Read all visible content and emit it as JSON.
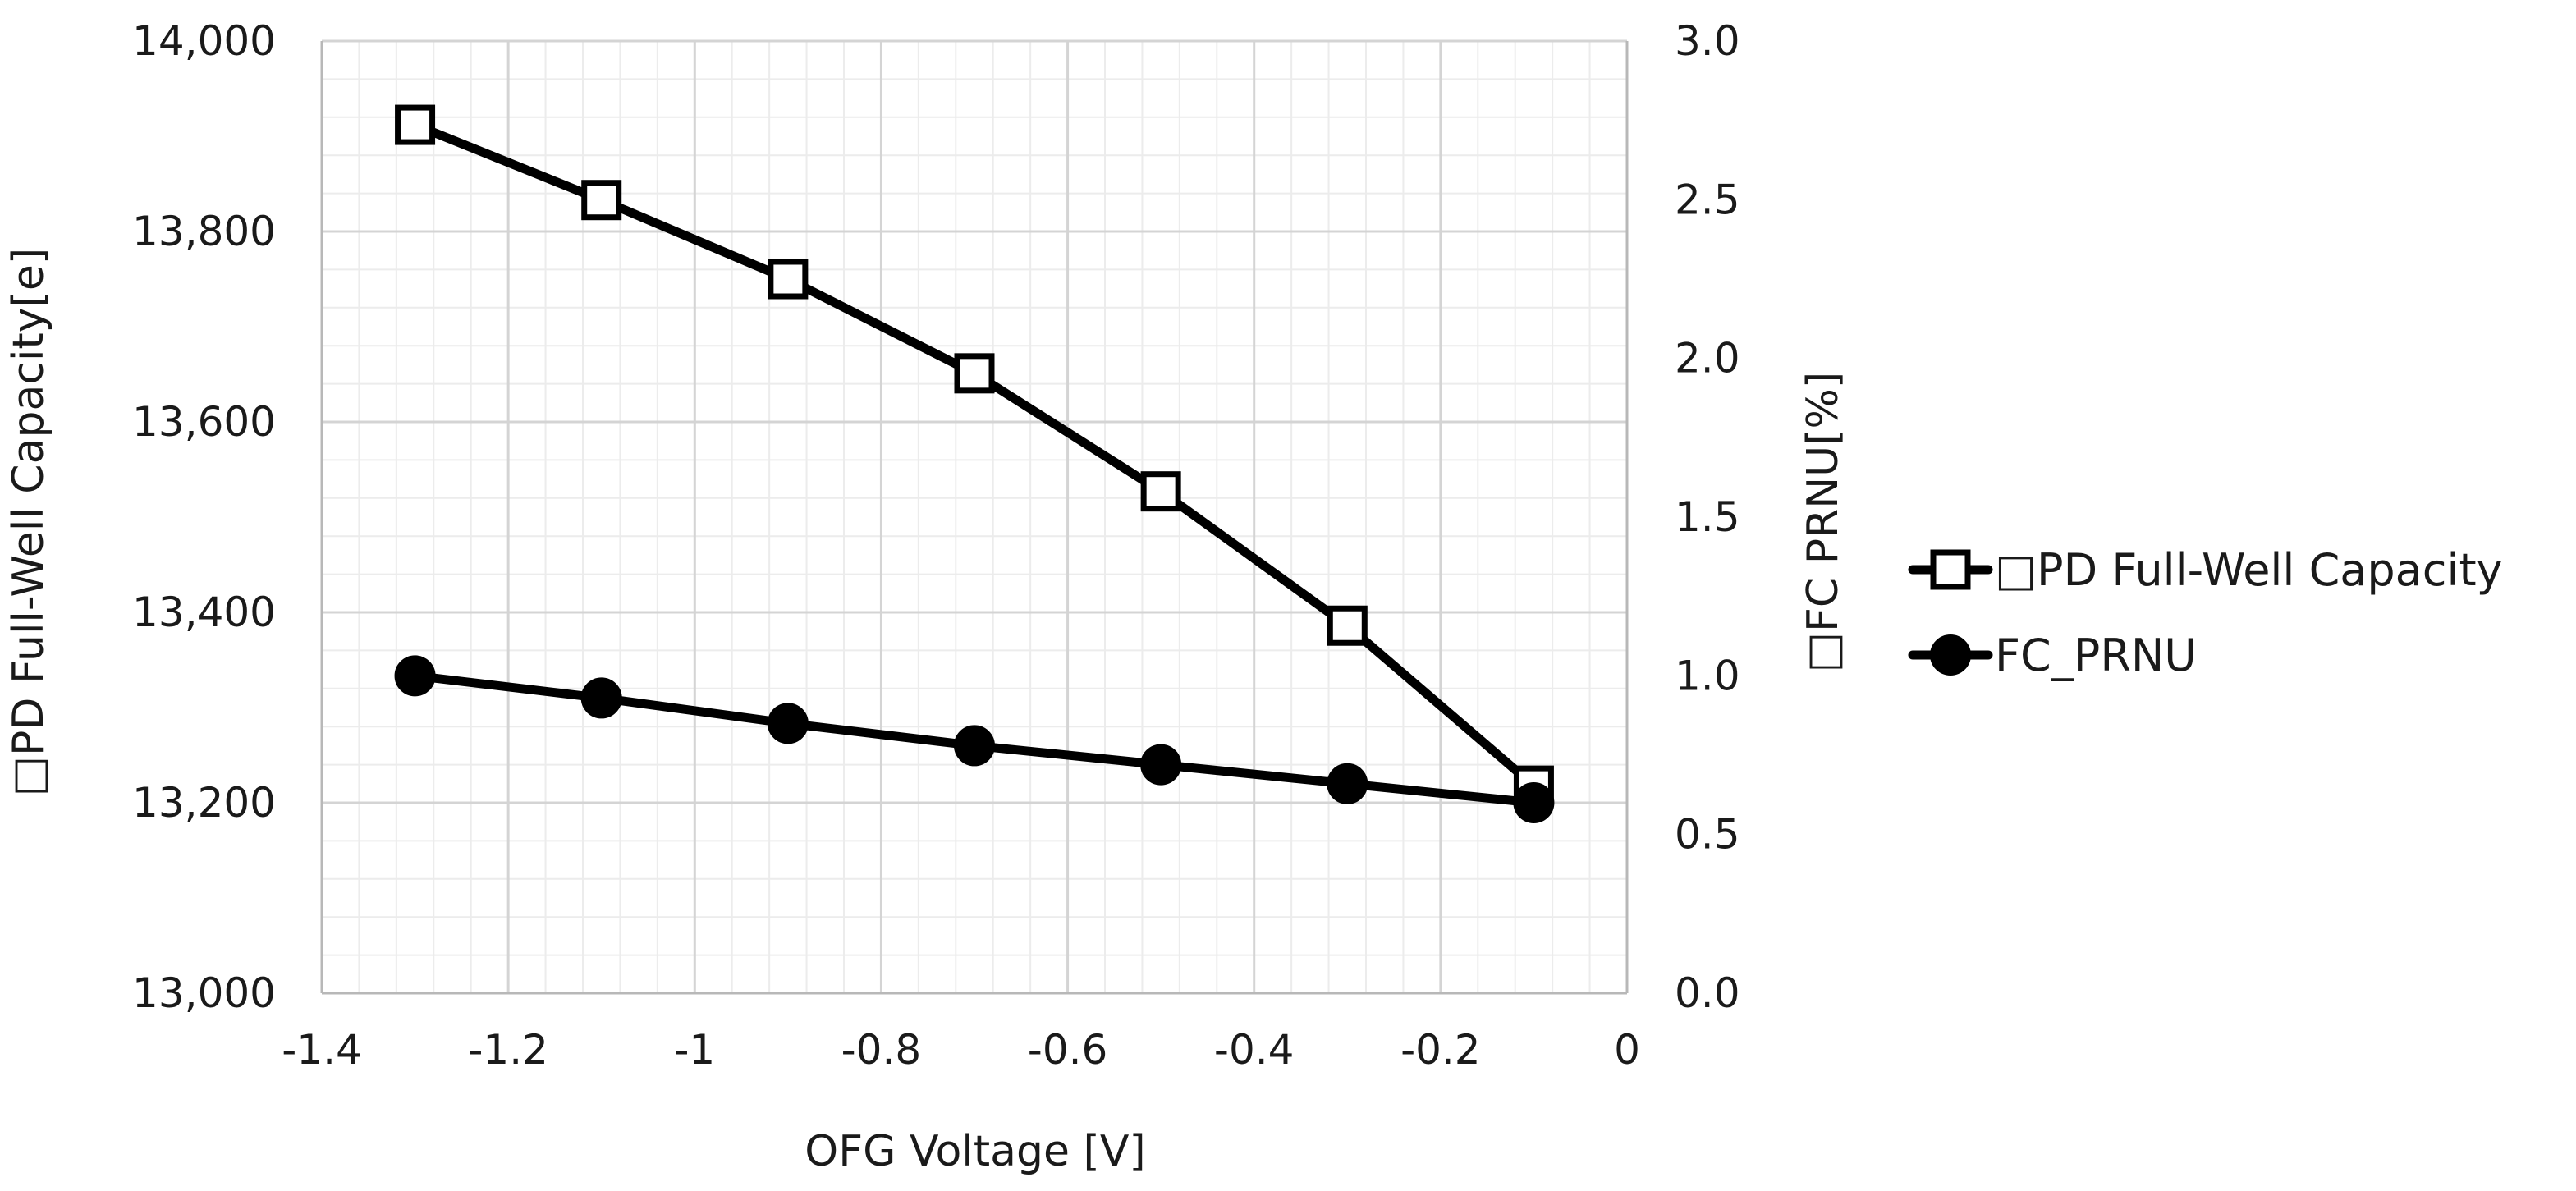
{
  "chart_data": {
    "type": "line",
    "title": "",
    "xlabel": "OFG Voltage [V]",
    "ylabel_left": "□PD Full-Well Capacity[e]",
    "ylabel_right": "□FC PRNU[%]",
    "xlim": [
      -1.4,
      0
    ],
    "xticks": [
      -1.4,
      -1.2,
      -1,
      -0.8,
      -0.6,
      -0.4,
      -0.2,
      0
    ],
    "xtick_labels": [
      "-1.4",
      "-1.2",
      "-1",
      "-0.8",
      "-0.6",
      "-0.4",
      "-0.2",
      "0"
    ],
    "ylim_left": [
      13000,
      14000
    ],
    "yticks_left": [
      13000,
      13200,
      13400,
      13600,
      13800,
      14000
    ],
    "ytick_labels_left": [
      "13,000",
      "13,200",
      "13,400",
      "13,600",
      "13,800",
      "14,000"
    ],
    "ylim_right": [
      0,
      3
    ],
    "yticks_right": [
      0,
      0.5,
      1,
      1.5,
      2,
      2.5,
      3
    ],
    "ytick_labels_right": [
      "0.0",
      "0.5",
      "1.0",
      "1.5",
      "2.0",
      "2.5",
      "3.0"
    ],
    "grid": true,
    "legend_position": "right",
    "series": [
      {
        "name": "□PD Full-Well Capacity",
        "axis": "left",
        "marker": "open-square",
        "x": [
          -1.3,
          -1.1,
          -0.9,
          -0.7,
          -0.5,
          -0.3,
          -0.1
        ],
        "values": [
          13912,
          13833,
          13750,
          13651,
          13527,
          13386,
          13218
        ]
      },
      {
        "name": "FC_PRNU",
        "axis": "right",
        "marker": "filled-circle",
        "x": [
          -1.3,
          -1.1,
          -0.9,
          -0.7,
          -0.5,
          -0.3,
          -0.1
        ],
        "values": [
          1.0,
          0.93,
          0.85,
          0.78,
          0.72,
          0.66,
          0.6
        ]
      }
    ]
  }
}
